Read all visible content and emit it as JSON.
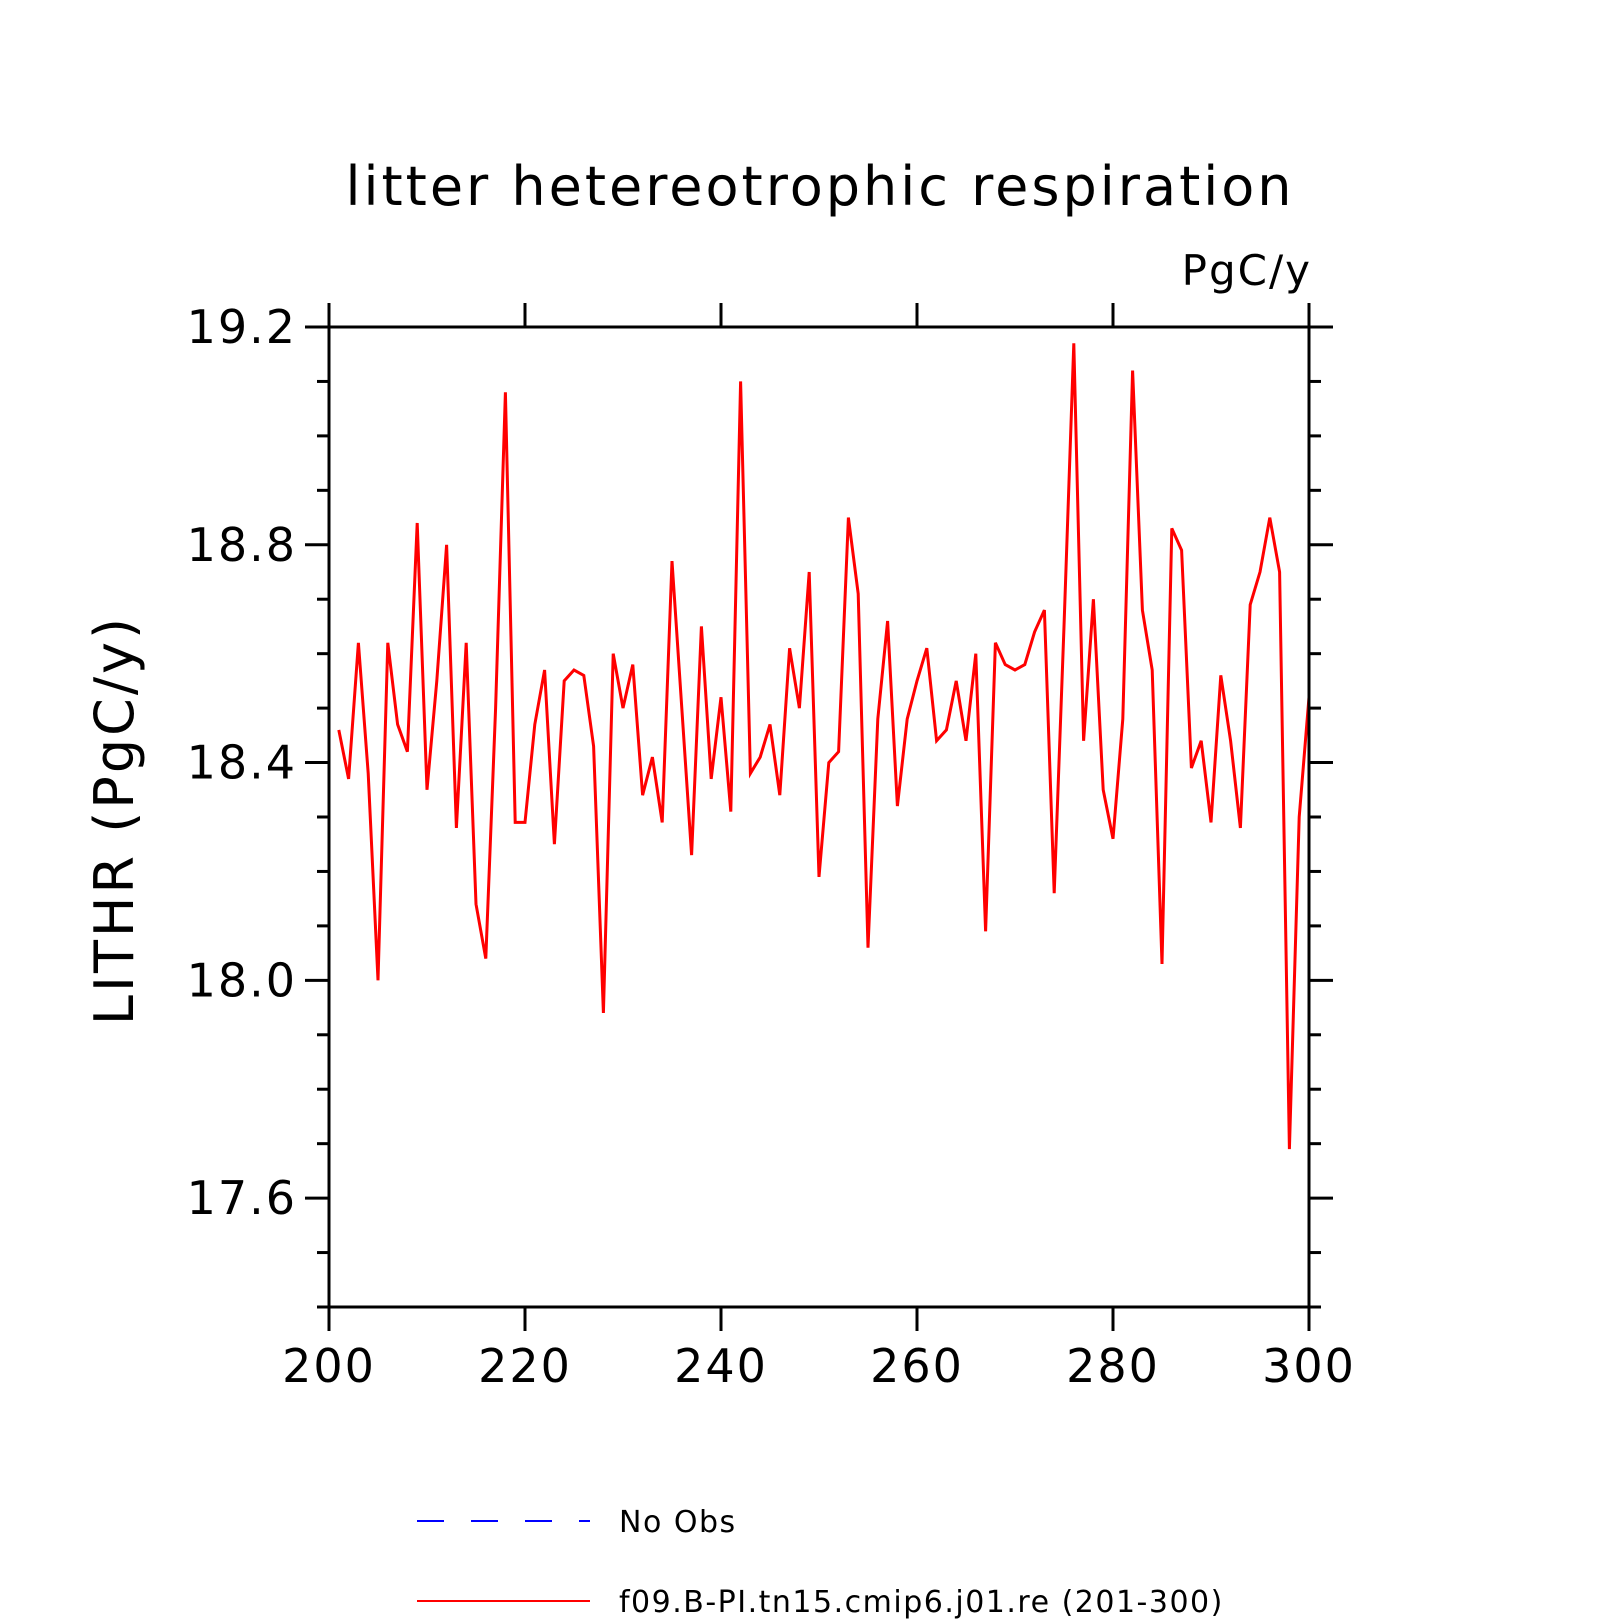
{
  "chart_data": {
    "type": "line",
    "title": "litter hetereotrophic respiration",
    "units": "PgC/y",
    "ylabel": "LITHR  (PgC/y)",
    "xlabel": "",
    "xlim": [
      200,
      300
    ],
    "ylim": [
      17.4,
      19.2
    ],
    "xticks": [
      "200",
      "220",
      "240",
      "260",
      "280",
      "300"
    ],
    "yticks": [
      "17.6",
      "18.0",
      "18.4",
      "18.8",
      "19.2"
    ],
    "series": [
      {
        "name": "f09.B-PI.tn15.cmip6.j01.re (201-300)",
        "color": "#ff0000",
        "x": [
          201,
          202,
          203,
          204,
          205,
          206,
          207,
          208,
          209,
          210,
          211,
          212,
          213,
          214,
          215,
          216,
          217,
          218,
          219,
          220,
          221,
          222,
          223,
          224,
          225,
          226,
          227,
          228,
          229,
          230,
          231,
          232,
          233,
          234,
          235,
          236,
          237,
          238,
          239,
          240,
          241,
          242,
          243,
          244,
          245,
          246,
          247,
          248,
          249,
          250,
          251,
          252,
          253,
          254,
          255,
          256,
          257,
          258,
          259,
          260,
          261,
          262,
          263,
          264,
          265,
          266,
          267,
          268,
          269,
          270,
          271,
          272,
          273,
          274,
          275,
          276,
          277,
          278,
          279,
          280,
          281,
          282,
          283,
          284,
          285,
          286,
          287,
          288,
          289,
          290,
          291,
          292,
          293,
          294,
          295,
          296,
          297,
          298,
          299,
          300
        ],
        "values": [
          18.46,
          18.37,
          18.62,
          18.38,
          18.0,
          18.62,
          18.47,
          18.42,
          18.84,
          18.35,
          18.55,
          18.8,
          18.28,
          18.62,
          18.14,
          18.04,
          18.5,
          19.08,
          18.29,
          18.29,
          18.47,
          18.57,
          18.25,
          18.55,
          18.57,
          18.56,
          18.43,
          17.94,
          18.6,
          18.5,
          18.58,
          18.34,
          18.41,
          18.29,
          18.77,
          18.5,
          18.23,
          18.65,
          18.37,
          18.52,
          18.31,
          19.1,
          18.38,
          18.41,
          18.47,
          18.34,
          18.61,
          18.5,
          18.75,
          18.19,
          18.4,
          18.42,
          18.85,
          18.71,
          18.06,
          18.48,
          18.66,
          18.32,
          18.48,
          18.55,
          18.61,
          18.44,
          18.46,
          18.55,
          18.44,
          18.6,
          18.09,
          18.62,
          18.58,
          18.57,
          18.58,
          18.64,
          18.68,
          18.16,
          18.65,
          19.17,
          18.44,
          18.7,
          18.35,
          18.26,
          18.48,
          19.12,
          18.68,
          18.57,
          18.03,
          18.83,
          18.79,
          18.39,
          18.44,
          18.29,
          18.56,
          18.44,
          18.28,
          18.69,
          18.75,
          18.85,
          18.75,
          17.69,
          18.3,
          18.52
        ]
      }
    ],
    "legend": {
      "placement": "bottom",
      "entries": [
        {
          "label": "No Obs",
          "color": "#0000ff",
          "style": "dashed"
        },
        {
          "label": "f09.B-PI.tn15.cmip6.j01.re (201-300)",
          "color": "#ff0000",
          "style": "solid"
        }
      ]
    },
    "grid": false
  }
}
